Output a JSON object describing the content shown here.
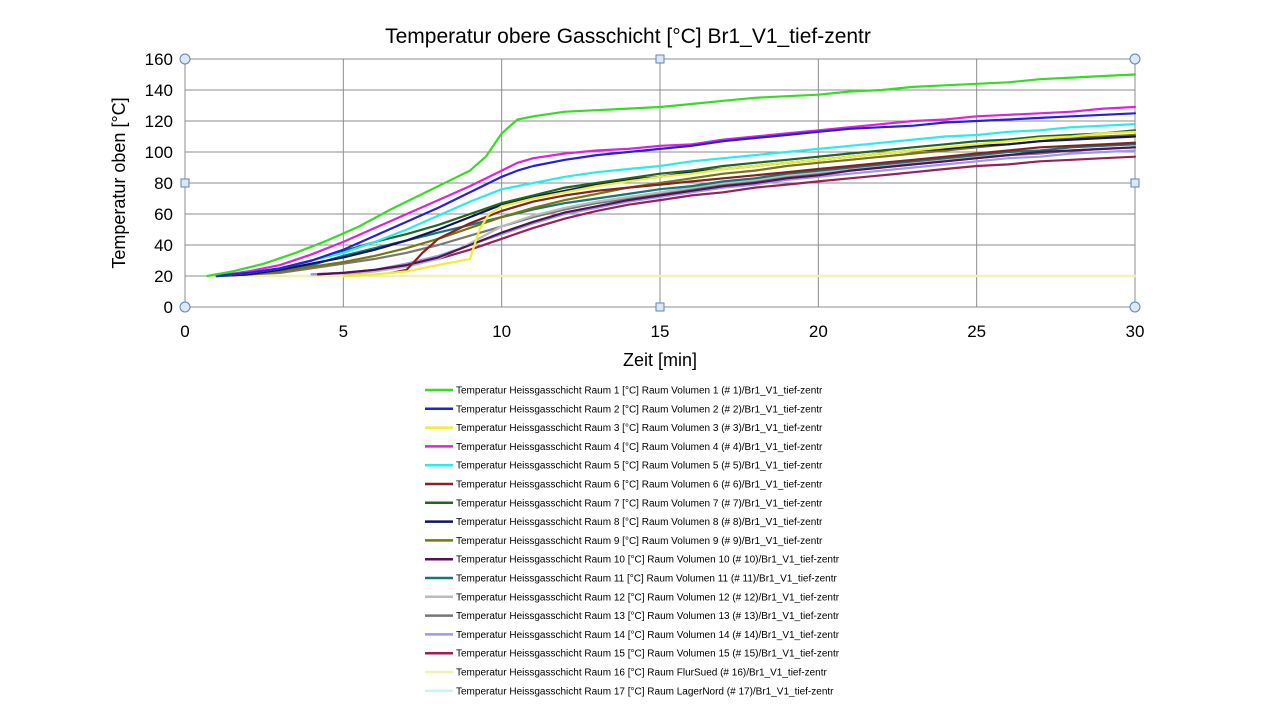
{
  "chart_data": {
    "type": "line",
    "title": "Temperatur  obere Gasschicht  [°C] Br1_V1_tief-zentr",
    "xlabel": "Zeit [min]",
    "ylabel": "Temperatur  oben [°C]",
    "xlim": [
      0,
      30
    ],
    "ylim": [
      0,
      160
    ],
    "xticks": [
      0,
      5,
      10,
      15,
      20,
      25,
      30
    ],
    "yticks": [
      0,
      20,
      40,
      60,
      80,
      100,
      120,
      140,
      160
    ],
    "grid": true,
    "legend_position": "bottom",
    "series": [
      {
        "name": "Temperatur Heissgasschicht Raum 1 [°C] Raum  Volumen 1 (# 1)/Br1_V1_tief-zentr",
        "color": "#33dd22",
        "x": [
          0.7,
          1.5,
          2.5,
          3.5,
          4.5,
          5.5,
          6.5,
          7.5,
          8.5,
          9.0,
          9.5,
          10.0,
          10.5,
          11,
          12,
          13,
          14,
          15,
          16,
          17,
          18,
          19,
          20,
          21,
          22,
          23,
          24,
          25,
          26,
          27,
          28,
          29,
          30
        ],
        "y": [
          20,
          23,
          28,
          35,
          43,
          52,
          63,
          73,
          83,
          88,
          97,
          112,
          121,
          123,
          126,
          127,
          128,
          129,
          131,
          133,
          135,
          136,
          137,
          139,
          140,
          142,
          143,
          144,
          145,
          147,
          148,
          149,
          150
        ]
      },
      {
        "name": "Temperatur Heissgasschicht Raum 2 [°C] Raum  Volumen 2 (# 2)/Br1_V1_tief-zentr",
        "color": "#2222dd",
        "x": [
          1.0,
          2,
          3,
          4,
          5,
          6,
          7,
          8,
          9,
          10,
          10.5,
          11,
          12,
          13,
          14,
          15,
          16,
          17,
          18,
          19,
          20,
          21,
          22,
          23,
          24,
          25,
          26,
          27,
          28,
          29,
          30
        ],
        "y": [
          20,
          22,
          25,
          30,
          37,
          46,
          55,
          64,
          74,
          84,
          88,
          91,
          95,
          98,
          100,
          102,
          104,
          107,
          109,
          111,
          113,
          115,
          116,
          117,
          119,
          120,
          121,
          122,
          123,
          124,
          125
        ]
      },
      {
        "name": "Temperatur Heissgasschicht Raum 3 [°C] Raum  Volumen 3 (# 3)/Br1_V1_tief-zentr",
        "color": "#eeee33",
        "x": [
          5,
          6,
          7,
          8,
          9,
          9.3,
          9.6,
          10,
          11,
          12,
          13,
          14,
          15,
          16,
          17,
          18,
          19,
          20,
          21,
          22,
          23,
          24,
          25,
          26,
          27,
          28,
          29,
          30
        ],
        "y": [
          20,
          21,
          23,
          27,
          31,
          50,
          60,
          65,
          70,
          74,
          78,
          81,
          84,
          86,
          89,
          91,
          93,
          95,
          97,
          99,
          101,
          103,
          105,
          107,
          109,
          110,
          112,
          113
        ]
      },
      {
        "name": "Temperatur Heissgasschicht Raum 4 [°C] Raum  Volumen 4 (# 4)/Br1_V1_tief-zentr",
        "color": "#dd22dd",
        "x": [
          1.0,
          2,
          3,
          4,
          5,
          6,
          7,
          8,
          9,
          10,
          10.5,
          11,
          12,
          13,
          14,
          15,
          16,
          17,
          18,
          19,
          20,
          21,
          22,
          23,
          24,
          25,
          26,
          27,
          28,
          29,
          30
        ],
        "y": [
          20,
          23,
          27,
          34,
          42,
          51,
          60,
          69,
          78,
          88,
          93,
          96,
          99,
          101,
          102,
          104,
          105,
          108,
          110,
          112,
          114,
          116,
          118,
          120,
          121,
          123,
          124,
          125,
          126,
          128,
          129
        ]
      },
      {
        "name": "Temperatur Heissgasschicht Raum 5 [°C] Raum  Volumen 5 (# 5)/Br1_V1_tief-zentr",
        "color": "#22eeee",
        "x": [
          1.0,
          2,
          3,
          4,
          5,
          6,
          7,
          8,
          9,
          10,
          11,
          12,
          13,
          14,
          15,
          16,
          17,
          18,
          19,
          20,
          21,
          22,
          23,
          24,
          25,
          26,
          27,
          28,
          29,
          30
        ],
        "y": [
          20,
          22,
          25,
          30,
          35,
          42,
          50,
          59,
          68,
          76,
          80,
          84,
          87,
          89,
          91,
          94,
          96,
          98,
          100,
          102,
          104,
          106,
          108,
          110,
          111,
          113,
          114,
          116,
          117,
          118
        ]
      },
      {
        "name": "Temperatur Heissgasschicht Raum 6 [°C] Raum  Volumen 6 (# 6)/Br1_V1_tief-zentr",
        "color": "#882222",
        "x": [
          6.5,
          7,
          7.5,
          8,
          9,
          10,
          11,
          12,
          13,
          14,
          15,
          16,
          17,
          18,
          19,
          20,
          21,
          22,
          23,
          24,
          25,
          26,
          27,
          28,
          29,
          30
        ],
        "y": [
          22,
          24,
          35,
          44,
          54,
          62,
          68,
          72,
          75,
          77,
          79,
          81,
          83,
          85,
          87,
          89,
          91,
          93,
          95,
          97,
          99,
          101,
          103,
          104,
          105,
          106
        ]
      },
      {
        "name": "Temperatur Heissgasschicht Raum 7 [°C] Raum  Volumen 7 (# 7)/Br1_V1_tief-zentr",
        "color": "#226622",
        "x": [
          1.0,
          2,
          3,
          4,
          5,
          6,
          7,
          8,
          9,
          10,
          11,
          12,
          13,
          14,
          15,
          16,
          17,
          18,
          19,
          20,
          21,
          22,
          23,
          24,
          25,
          26,
          27,
          28,
          29,
          30
        ],
        "y": [
          20,
          22,
          25,
          30,
          36,
          42,
          47,
          53,
          60,
          67,
          72,
          77,
          80,
          83,
          86,
          88,
          91,
          93,
          95,
          97,
          99,
          101,
          103,
          105,
          107,
          108,
          110,
          111,
          112,
          114
        ]
      },
      {
        "name": "Temperatur Heissgasschicht Raum 8 [°C] Raum  Volumen 8 (# 8)/Br1_V1_tief-zentr",
        "color": "#111166",
        "x": [
          1.0,
          2,
          3,
          4,
          5,
          6,
          7,
          8,
          9,
          10,
          11,
          12,
          13,
          14,
          15,
          16,
          17,
          18,
          19,
          20,
          21,
          22,
          23,
          24,
          25,
          26,
          27,
          28,
          29,
          30
        ],
        "y": [
          20,
          21,
          24,
          28,
          32,
          37,
          43,
          50,
          58,
          66,
          71,
          75,
          79,
          82,
          84,
          87,
          89,
          91,
          93,
          95,
          97,
          99,
          101,
          102,
          104,
          105,
          107,
          108,
          109,
          110
        ]
      },
      {
        "name": "Temperatur Heissgasschicht Raum 9 [°C] Raum  Volumen 9 (# 9)/Br1_V1_tief-zentr",
        "color": "#777711",
        "x": [
          1.0,
          2,
          3,
          4,
          5,
          6,
          7,
          8,
          9,
          10,
          11,
          12,
          13,
          14,
          15,
          16,
          17,
          18,
          19,
          20,
          21,
          22,
          23,
          24,
          25,
          26,
          27,
          28,
          29,
          30
        ],
        "y": [
          20,
          21,
          23,
          26,
          29,
          33,
          38,
          44,
          51,
          58,
          64,
          69,
          73,
          77,
          80,
          83,
          86,
          88,
          91,
          93,
          95,
          97,
          99,
          101,
          103,
          105,
          107,
          109,
          110,
          111
        ]
      },
      {
        "name": "Temperatur Heissgasschicht Raum 10 [°C] Raum  Volumen 10 (# 10)/Br1_V1_tief-zentr",
        "color": "#551155",
        "x": [
          4.2,
          5,
          6,
          7,
          8,
          9,
          10,
          11,
          12,
          13,
          14,
          15,
          16,
          17,
          18,
          19,
          20,
          21,
          22,
          23,
          24,
          25,
          26,
          27,
          28,
          29,
          30
        ],
        "y": [
          21,
          22,
          24,
          27,
          32,
          40,
          48,
          55,
          61,
          65,
          69,
          72,
          75,
          78,
          80,
          83,
          85,
          88,
          90,
          92,
          94,
          96,
          98,
          100,
          101,
          102,
          103
        ]
      },
      {
        "name": "Temperatur Heissgasschicht Raum 11 [°C] Raum  Volumen 11 (# 11)/Br1_V1_tief-zentr",
        "color": "#117777",
        "x": [
          1.0,
          2,
          3,
          4,
          5,
          6,
          7,
          8,
          9,
          10,
          11,
          12,
          13,
          14,
          15,
          16,
          17,
          18,
          19,
          20,
          21,
          22,
          23,
          24,
          25,
          26,
          27,
          28,
          29,
          30
        ],
        "y": [
          20,
          21,
          23,
          27,
          33,
          38,
          43,
          48,
          53,
          58,
          63,
          67,
          70,
          73,
          76,
          78,
          81,
          83,
          86,
          88,
          90,
          92,
          94,
          96,
          98,
          100,
          101,
          103,
          104,
          105
        ]
      },
      {
        "name": "Temperatur Heissgasschicht Raum 12 [°C] Raum  Volumen 12 (# 12)/Br1_V1_tief-zentr",
        "color": "#bbbbbb",
        "x": [
          5,
          6,
          7,
          8,
          9,
          10,
          11,
          12,
          13,
          14,
          15,
          16,
          17,
          18,
          19,
          20,
          21,
          22,
          23,
          24,
          25,
          26,
          27,
          28,
          29,
          30
        ],
        "y": [
          21,
          23,
          26,
          31,
          41,
          52,
          59,
          64,
          68,
          71,
          74,
          77,
          80,
          82,
          85,
          87,
          89,
          91,
          93,
          95,
          97,
          98,
          100,
          101,
          102,
          103
        ]
      },
      {
        "name": "Temperatur Heissgasschicht Raum 13 [°C] Raum  Volumen 13 (# 13)/Br1_V1_tief-zentr",
        "color": "#777777",
        "x": [
          1.0,
          2,
          3,
          4,
          5,
          6,
          7,
          8,
          9,
          10,
          11,
          12,
          13,
          14,
          15,
          16,
          17,
          18,
          19,
          20,
          21,
          22,
          23,
          24,
          25,
          26,
          27,
          28,
          29,
          30
        ],
        "y": [
          20,
          21,
          22,
          25,
          28,
          31,
          35,
          40,
          46,
          52,
          58,
          63,
          67,
          70,
          73,
          76,
          79,
          81,
          84,
          86,
          88,
          90,
          92,
          94,
          96,
          98,
          99,
          101,
          102,
          103
        ]
      },
      {
        "name": "Temperatur Heissgasschicht Raum 14 [°C] Raum  Volumen 14 (# 14)/Br1_V1_tief-zentr",
        "color": "#9999ee",
        "x": [
          4,
          5,
          6,
          7,
          8,
          9,
          10,
          11,
          12,
          13,
          14,
          15,
          16,
          17,
          18,
          19,
          20,
          21,
          22,
          23,
          24,
          25,
          26,
          27,
          28,
          29,
          30
        ],
        "y": [
          21,
          22,
          24,
          28,
          33,
          40,
          47,
          54,
          60,
          64,
          68,
          71,
          74,
          77,
          79,
          82,
          84,
          86,
          88,
          90,
          92,
          94,
          96,
          97,
          99,
          100,
          101
        ]
      },
      {
        "name": "Temperatur Heissgasschicht Raum 15 [°C] Raum  Volumen 15 (# 15)/Br1_V1_tief-zentr",
        "color": "#992255",
        "x": [
          4,
          5,
          6,
          7,
          8,
          9,
          10,
          11,
          12,
          13,
          14,
          15,
          16,
          17,
          18,
          19,
          20,
          21,
          22,
          23,
          24,
          25,
          26,
          27,
          28,
          29,
          30
        ],
        "y": [
          21,
          22,
          24,
          27,
          31,
          37,
          44,
          51,
          57,
          62,
          66,
          69,
          72,
          74,
          77,
          79,
          81,
          83,
          85,
          87,
          89,
          91,
          92,
          94,
          95,
          96,
          97
        ]
      },
      {
        "name": "Temperatur Heissgasschicht Raum 16 [°C] Raum  FlurSued (# 16)/Br1_V1_tief-zentr",
        "color": "#f4f0b0",
        "x": [
          0.7,
          30
        ],
        "y": [
          20,
          20
        ]
      },
      {
        "name": "Temperatur Heissgasschicht Raum 17 [°C] Raum  LagerNord (# 17)/Br1_V1_tief-zentr",
        "color": "#c8f4f4",
        "x": [
          0.7,
          30
        ],
        "y": [
          20,
          20
        ]
      }
    ]
  }
}
